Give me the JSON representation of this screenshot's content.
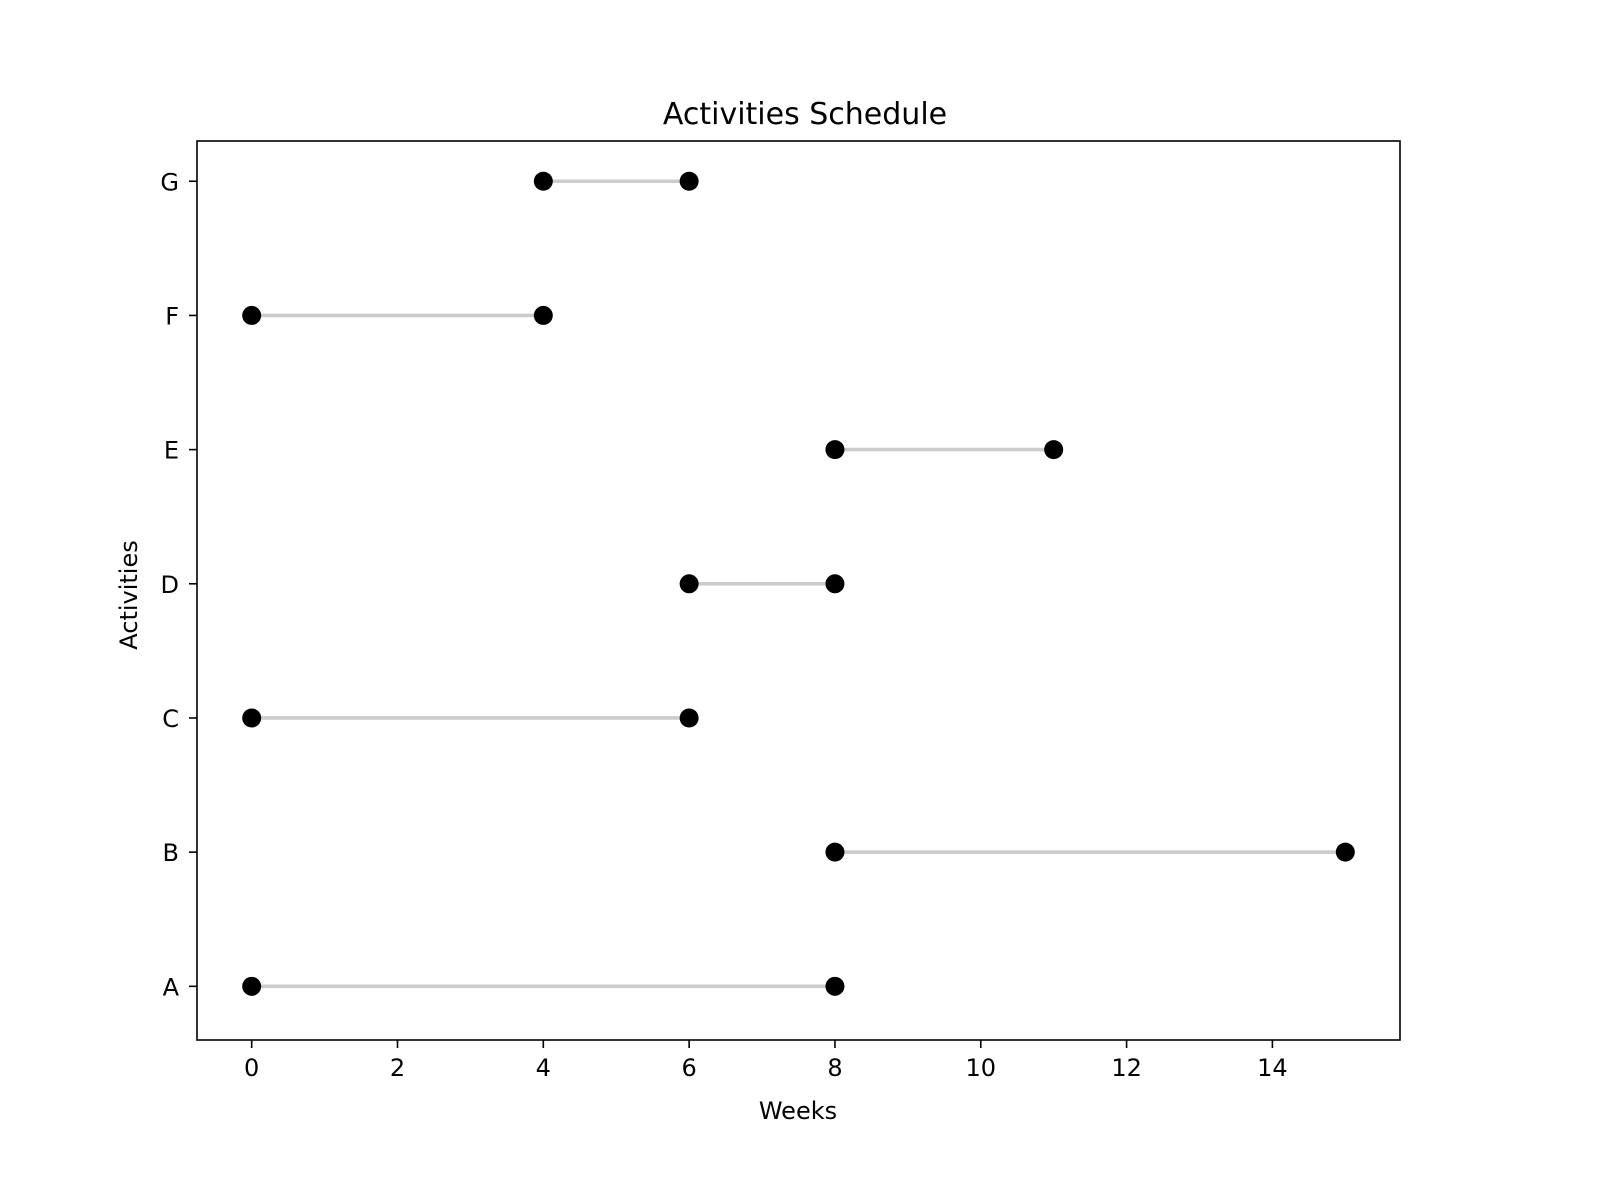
{
  "chart_data": {
    "type": "dumbbell",
    "title": "Activities Schedule",
    "xlabel": "Weeks",
    "ylabel": "Activities",
    "xlim": [
      -0.75,
      15.75
    ],
    "xticks": [
      0,
      2,
      4,
      6,
      8,
      10,
      12,
      14
    ],
    "categories": [
      "A",
      "B",
      "C",
      "D",
      "E",
      "F",
      "G"
    ],
    "start": [
      0,
      8,
      0,
      6,
      8,
      0,
      4
    ],
    "end": [
      8,
      15,
      6,
      8,
      11,
      4,
      6
    ],
    "grid": false,
    "colors": {
      "marker": "#000000",
      "connector": "#cccccc",
      "axes": "#000000"
    }
  }
}
